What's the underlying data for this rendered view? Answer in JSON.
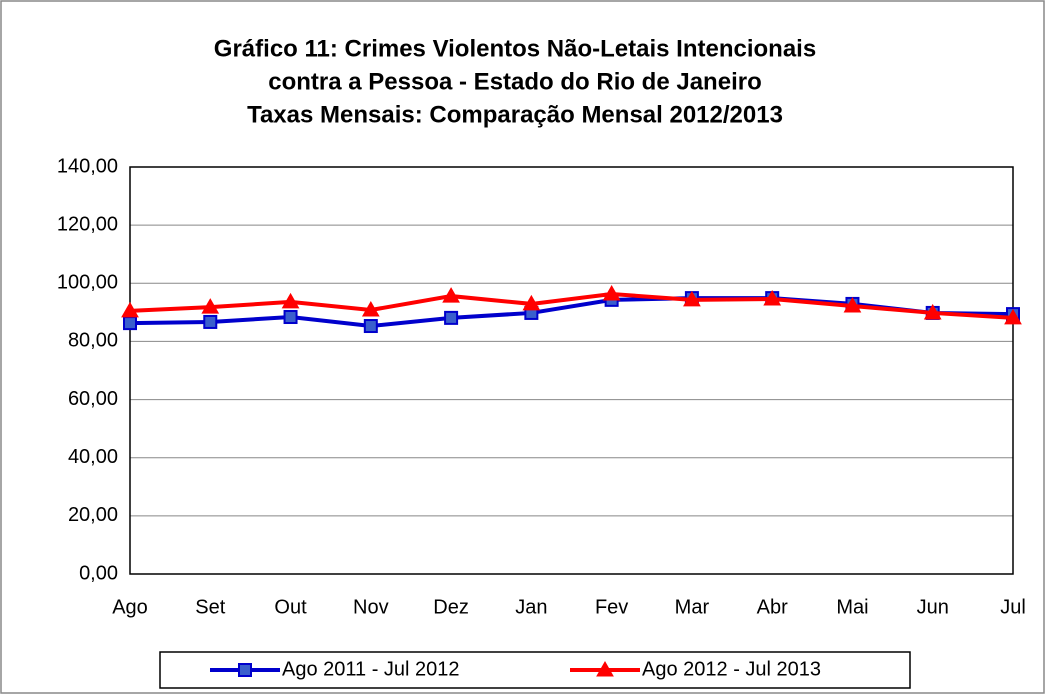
{
  "chart_data": {
    "type": "line",
    "title": [
      "Gráfico  11: Crimes Violentos Não-Letais Intencionais",
      "contra a Pessoa - Estado do Rio de Janeiro",
      "Taxas Mensais: Comparação Mensal 2012/2013"
    ],
    "categories": [
      "Ago",
      "Set",
      "Out",
      "Nov",
      "Dez",
      "Jan",
      "Fev",
      "Mar",
      "Abr",
      "Mai",
      "Jun",
      "Jul"
    ],
    "series": [
      {
        "name": "Ago 2011 - Jul 2012",
        "color": "#0000cc",
        "marker": "square",
        "values": [
          86.3,
          86.7,
          88.4,
          85.3,
          88.1,
          89.8,
          94.3,
          94.9,
          94.9,
          92.9,
          89.8,
          89.4
        ]
      },
      {
        "name": "Ago 2012 - Jul 2013",
        "color": "#ff0000",
        "marker": "triangle",
        "values": [
          90.5,
          91.8,
          93.6,
          90.8,
          95.6,
          92.9,
          96.3,
          94.3,
          94.6,
          92.2,
          89.8,
          88.1
        ]
      }
    ],
    "ylim": [
      0,
      140
    ],
    "yticks": [
      {
        "value": 0,
        "label": "0,00"
      },
      {
        "value": 20,
        "label": "20,00"
      },
      {
        "value": 40,
        "label": "40,00"
      },
      {
        "value": 60,
        "label": "60,00"
      },
      {
        "value": 80,
        "label": "80,00"
      },
      {
        "value": 100,
        "label": "100,00"
      },
      {
        "value": 120,
        "label": "120,00"
      },
      {
        "value": 140,
        "label": "140,00"
      }
    ],
    "grid": true,
    "legend": "bottom"
  }
}
